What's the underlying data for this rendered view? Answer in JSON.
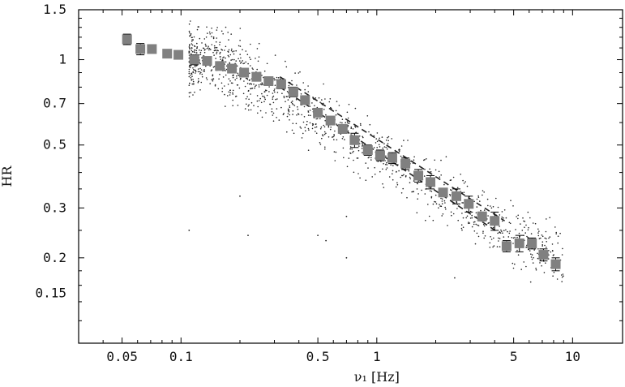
{
  "chart_data": {
    "type": "scatter",
    "title": "",
    "xlabel": "ν₁ [Hz]",
    "ylabel": "HR",
    "x_scale": "log",
    "y_scale": "log",
    "xlim": [
      0.03,
      18
    ],
    "ylim": [
      0.1,
      1.5
    ],
    "grid": false,
    "legend": "none",
    "x_ticks": [
      {
        "value": 0.05,
        "label": "0.05"
      },
      {
        "value": 0.1,
        "label": "0.1"
      },
      {
        "value": 0.5,
        "label": "0.5"
      },
      {
        "value": 1,
        "label": "1"
      },
      {
        "value": 5,
        "label": "5"
      },
      {
        "value": 10,
        "label": "10"
      }
    ],
    "y_ticks": [
      {
        "value": 1.5,
        "label": "1.5"
      },
      {
        "value": 1,
        "label": "1"
      },
      {
        "value": 0.7,
        "label": "0.7"
      },
      {
        "value": 0.5,
        "label": "0.5"
      },
      {
        "value": 0.3,
        "label": "0.3"
      },
      {
        "value": 0.2,
        "label": "0.2"
      },
      {
        "value": 0.15,
        "label": "0.15"
      }
    ],
    "series": [
      {
        "kind": "binned-points",
        "color": "#808080",
        "points": [
          {
            "x": 0.053,
            "y": 1.18,
            "err": 0.05
          },
          {
            "x": 0.062,
            "y": 1.09,
            "err": 0.05
          },
          {
            "x": 0.071,
            "y": 1.09,
            "err": 0.02
          },
          {
            "x": 0.085,
            "y": 1.05,
            "err": 0.02
          },
          {
            "x": 0.097,
            "y": 1.04,
            "err": 0.02
          },
          {
            "x": 0.117,
            "y": 1.0,
            "err": 0.04
          },
          {
            "x": 0.136,
            "y": 0.99,
            "err": 0.02
          },
          {
            "x": 0.158,
            "y": 0.95,
            "err": 0.02
          },
          {
            "x": 0.182,
            "y": 0.93,
            "err": 0.02
          },
          {
            "x": 0.21,
            "y": 0.9,
            "err": 0.02
          },
          {
            "x": 0.243,
            "y": 0.87,
            "err": 0.02
          },
          {
            "x": 0.28,
            "y": 0.84,
            "err": 0.02
          },
          {
            "x": 0.325,
            "y": 0.82,
            "err": 0.03
          },
          {
            "x": 0.375,
            "y": 0.77,
            "err": 0.03
          },
          {
            "x": 0.43,
            "y": 0.72,
            "err": 0.02
          },
          {
            "x": 0.5,
            "y": 0.65,
            "err": 0.02
          },
          {
            "x": 0.58,
            "y": 0.61,
            "err": 0.02
          },
          {
            "x": 0.67,
            "y": 0.57,
            "err": 0.02
          },
          {
            "x": 0.77,
            "y": 0.52,
            "err": 0.03
          },
          {
            "x": 0.9,
            "y": 0.48,
            "err": 0.02
          },
          {
            "x": 1.04,
            "y": 0.46,
            "err": 0.02
          },
          {
            "x": 1.2,
            "y": 0.45,
            "err": 0.02
          },
          {
            "x": 1.4,
            "y": 0.43,
            "err": 0.02
          },
          {
            "x": 1.63,
            "y": 0.39,
            "err": 0.02
          },
          {
            "x": 1.88,
            "y": 0.37,
            "err": 0.02
          },
          {
            "x": 2.18,
            "y": 0.34,
            "err": 0.01
          },
          {
            "x": 2.55,
            "y": 0.33,
            "err": 0.02
          },
          {
            "x": 2.95,
            "y": 0.31,
            "err": 0.02
          },
          {
            "x": 3.45,
            "y": 0.28,
            "err": 0.01
          },
          {
            "x": 4.0,
            "y": 0.27,
            "err": 0.02
          },
          {
            "x": 4.6,
            "y": 0.22,
            "err": 0.01
          },
          {
            "x": 5.35,
            "y": 0.225,
            "err": 0.015
          },
          {
            "x": 6.2,
            "y": 0.225,
            "err": 0.01
          },
          {
            "x": 7.1,
            "y": 0.205,
            "err": 0.01
          },
          {
            "x": 8.2,
            "y": 0.19,
            "err": 0.01
          }
        ]
      },
      {
        "kind": "scatter-cloud",
        "color": "#222222",
        "approx_point_count": 1200,
        "relation": "y ≈ 1.0 for x ≤ 0.15, then y ≈ 1.0 · (x / 0.15)^-0.4, spread ± ~15%",
        "x_range": [
          0.09,
          9
        ]
      },
      {
        "kind": "dashed-line",
        "color": "#222222",
        "points": [
          {
            "x": 0.32,
            "y": 0.87
          },
          {
            "x": 4.5,
            "y": 0.27
          }
        ]
      },
      {
        "kind": "dashed-line",
        "color": "#222222",
        "points": [
          {
            "x": 0.32,
            "y": 0.8
          },
          {
            "x": 4.2,
            "y": 0.245
          }
        ]
      }
    ]
  }
}
